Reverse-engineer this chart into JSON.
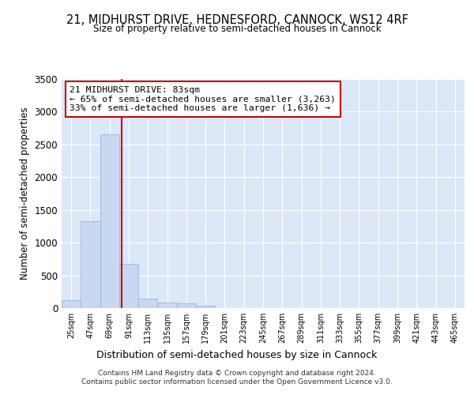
{
  "title": "21, MIDHURST DRIVE, HEDNESFORD, CANNOCK, WS12 4RF",
  "subtitle": "Size of property relative to semi-detached houses in Cannock",
  "xlabel": "Distribution of semi-detached houses by size in Cannock",
  "ylabel": "Number of semi-detached properties",
  "bar_color": "#c8d8f0",
  "bar_edge_color": "#8ab0d8",
  "background_color": "#dce8f8",
  "grid_color": "#ffffff",
  "bins": [
    25,
    47,
    69,
    91,
    113,
    135,
    157,
    179,
    201,
    223,
    245,
    267,
    289,
    311,
    333,
    355,
    377,
    399,
    421,
    443,
    465
  ],
  "counts": [
    120,
    1330,
    2650,
    670,
    145,
    90,
    70,
    40,
    5,
    0,
    0,
    0,
    0,
    0,
    0,
    0,
    0,
    0,
    0,
    0
  ],
  "property_size": 83,
  "property_size_label": "21 MIDHURST DRIVE: 83sqm",
  "pct_smaller": 65,
  "n_smaller": 3263,
  "pct_larger": 33,
  "n_larger": 1636,
  "red_line_color": "#cc0000",
  "ylim": [
    0,
    3500
  ],
  "yticks": [
    0,
    500,
    1000,
    1500,
    2000,
    2500,
    3000,
    3500
  ],
  "footer_line1": "Contains HM Land Registry data © Crown copyright and database right 2024.",
  "footer_line2": "Contains public sector information licensed under the Open Government Licence v3.0."
}
